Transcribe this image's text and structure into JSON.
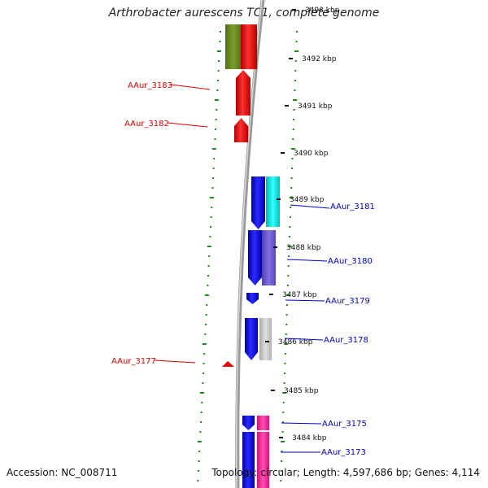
{
  "title": "Arthrobacter aurescens TC1, complete genome",
  "accession": "Accession: NC_008711",
  "topology": "Topology: circular; Length: 4,597,686 bp; Genes: 4,114",
  "colors": {
    "dotted_track": "#1a8c1a",
    "backbone": "#8a8a8a",
    "reverse_label": "#dd0000",
    "forward_label": "#0000cc",
    "red_gene": "#ee0000",
    "olive_feature": "#6b8e23",
    "blue_gene": "#0000ee",
    "cyan_feature": "#00e5e5",
    "slate_feature": "#6a5acd",
    "gray_feature": "#c0c0c0",
    "pink_feature": "#ff1493"
  },
  "scale_ticks": [
    {
      "text": "3493 kbp"
    },
    {
      "text": "3492 kbp"
    },
    {
      "text": "3491 kbp"
    },
    {
      "text": "3490 kbp"
    },
    {
      "text": "3489 kbp"
    },
    {
      "text": "3488 kbp"
    },
    {
      "text": "3487 kbp"
    },
    {
      "text": "3486 kbp"
    },
    {
      "text": "3485 kbp"
    },
    {
      "text": "3484 kbp"
    }
  ],
  "reverse_genes": [
    {
      "label": "AAur_3183",
      "color": "#ee0000"
    },
    {
      "label": "AAur_3182",
      "color": "#ee0000"
    },
    {
      "label": "AAur_3177",
      "color": "#ee0000"
    }
  ],
  "forward_genes": [
    {
      "label": "AAur_3181",
      "color": "#0000ee",
      "feature_color": "#00e5e5"
    },
    {
      "label": "AAur_3180",
      "color": "#0000ee",
      "feature_color": "#6a5acd"
    },
    {
      "label": "AAur_3179",
      "color": "#0000ee"
    },
    {
      "label": "AAur_3178",
      "color": "#0000ee",
      "feature_color": "#c0c0c0"
    },
    {
      "label": "AAur_3175",
      "color": "#0000ee",
      "feature_color": "#ff1493"
    },
    {
      "label": "AAur_3173",
      "color": "#0000ee",
      "feature_color": "#ff1493"
    }
  ]
}
